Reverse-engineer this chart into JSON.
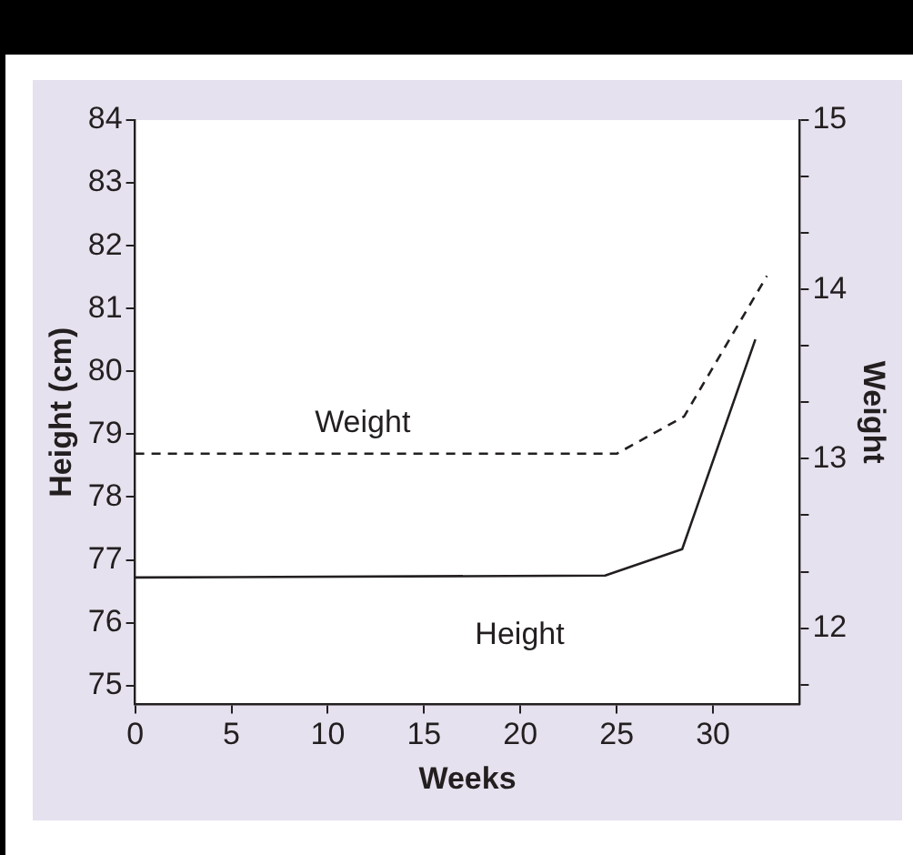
{
  "chart_data": {
    "type": "line",
    "xlabel": "Weeks",
    "ylabel": "Height (cm)",
    "y2label": "Weight",
    "xlim": [
      0,
      34.5
    ],
    "xticks": [
      0,
      5,
      10,
      15,
      20,
      25,
      30
    ],
    "ylim": [
      74.7,
      84
    ],
    "yticks": [
      75,
      76,
      77,
      78,
      79,
      80,
      81,
      82,
      83,
      84
    ],
    "y2lim": [
      11.55,
      15
    ],
    "y2ticks": [
      {
        "value": 11.667,
        "label": null
      },
      12,
      {
        "value": 12.333,
        "label": null
      },
      {
        "value": 12.667,
        "label": null
      },
      13,
      {
        "value": 13.333,
        "label": null
      },
      {
        "value": 13.667,
        "label": null
      },
      14,
      {
        "value": 14.333,
        "label": null
      },
      {
        "value": 14.667,
        "label": null
      },
      15
    ],
    "grid": false,
    "legend": false,
    "marker": "none",
    "series": [
      {
        "name": "Height",
        "color": "#231f20",
        "line_style": "solid",
        "x": [
          0,
          24.4,
          28.4,
          32.2
        ],
        "values": [
          76.72,
          76.75,
          77.17,
          80.51
        ]
      },
      {
        "name": "Weight",
        "color": "#231f20",
        "line_style": "dashed",
        "axis": "y2",
        "x": [
          0,
          25,
          28.5,
          32.8
        ],
        "values": [
          13.03,
          13.03,
          13.25,
          14.08
        ]
      }
    ]
  }
}
